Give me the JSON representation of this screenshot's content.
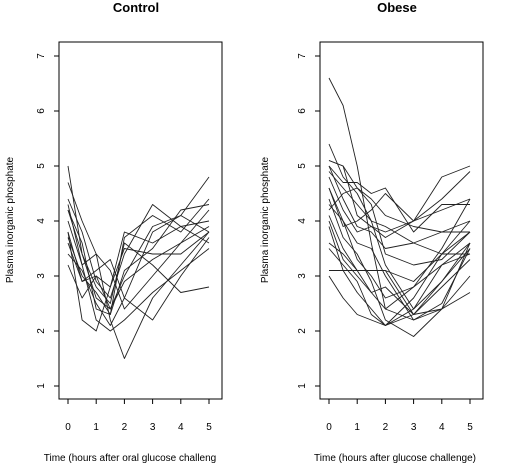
{
  "chart_data": [
    {
      "type": "line",
      "title": "Control",
      "xlabel": "Time (hours after oral glucose challeng",
      "ylabel": "Plasma inorganic phosphate",
      "xlim": [
        0,
        5
      ],
      "ylim": [
        0.8,
        7.4
      ],
      "x": [
        0,
        0.5,
        1,
        1.5,
        2,
        3,
        4,
        5
      ],
      "x_ticks": [
        0,
        1,
        2,
        3,
        4,
        5
      ],
      "y_ticks": [
        1,
        2,
        3,
        4,
        5,
        6,
        7
      ],
      "grid": false,
      "series": [
        {
          "values": [
            5.0,
            3.4,
            2.6,
            2.4,
            3.0,
            3.9,
            4.1,
            4.8
          ]
        },
        {
          "values": [
            4.7,
            4.0,
            3.4,
            2.2,
            1.5,
            2.6,
            3.2,
            3.8
          ]
        },
        {
          "values": [
            4.4,
            3.8,
            2.9,
            2.6,
            3.4,
            4.3,
            3.9,
            3.6
          ]
        },
        {
          "values": [
            4.3,
            3.2,
            2.2,
            2.0,
            2.2,
            2.7,
            3.1,
            3.5
          ]
        },
        {
          "values": [
            4.2,
            3.4,
            2.8,
            2.5,
            3.6,
            3.2,
            2.7,
            2.8
          ]
        },
        {
          "values": [
            4.0,
            3.2,
            3.4,
            3.1,
            2.4,
            3.0,
            3.6,
            4.2
          ]
        },
        {
          "values": [
            3.8,
            2.2,
            2.0,
            2.8,
            3.8,
            3.6,
            3.9,
            4.0
          ]
        },
        {
          "values": [
            3.8,
            2.9,
            3.0,
            2.4,
            2.9,
            3.3,
            3.6,
            3.9
          ]
        },
        {
          "values": [
            3.7,
            3.0,
            2.7,
            2.3,
            3.7,
            4.1,
            3.8,
            4.4
          ]
        },
        {
          "values": [
            3.6,
            2.9,
            3.1,
            3.3,
            2.6,
            2.2,
            3.0,
            3.7
          ]
        },
        {
          "values": [
            3.4,
            3.1,
            2.5,
            2.1,
            2.6,
            3.8,
            4.1,
            3.8
          ]
        },
        {
          "values": [
            3.2,
            2.6,
            3.0,
            2.8,
            3.5,
            3.4,
            3.4,
            3.8
          ]
        },
        {
          "values": [
            4.2,
            3.6,
            2.4,
            2.3,
            3.1,
            3.5,
            4.2,
            4.3
          ]
        }
      ]
    },
    {
      "type": "line",
      "title": "Obese",
      "xlabel": "Time (hours after glucose challenge)",
      "ylabel": "Plasma inorganic phosphate",
      "xlim": [
        0,
        5
      ],
      "ylim": [
        0.8,
        7.4
      ],
      "x": [
        0,
        0.5,
        1,
        1.5,
        2,
        3,
        4,
        5
      ],
      "x_ticks": [
        0,
        1,
        2,
        3,
        4,
        5
      ],
      "y_ticks": [
        1,
        2,
        3,
        4,
        5,
        6,
        7
      ],
      "grid": false,
      "series": [
        {
          "values": [
            6.6,
            6.1,
            5.0,
            3.6,
            2.4,
            2.2,
            2.5,
            3.5
          ]
        },
        {
          "values": [
            5.4,
            4.8,
            4.5,
            4.0,
            3.9,
            3.6,
            3.8,
            3.8
          ]
        },
        {
          "values": [
            5.1,
            5.0,
            4.1,
            3.9,
            3.8,
            4.0,
            4.8,
            5.0
          ]
        },
        {
          "values": [
            5.0,
            4.7,
            4.7,
            4.5,
            4.6,
            3.8,
            4.3,
            4.3
          ]
        },
        {
          "values": [
            5.0,
            4.4,
            3.9,
            3.8,
            3.5,
            3.6,
            3.4,
            3.4
          ]
        },
        {
          "values": [
            4.9,
            4.6,
            4.3,
            4.0,
            3.2,
            2.4,
            3.2,
            3.4
          ]
        },
        {
          "values": [
            4.8,
            4.2,
            3.8,
            3.9,
            3.7,
            4.0,
            4.2,
            4.4
          ]
        },
        {
          "values": [
            4.6,
            3.9,
            4.0,
            4.2,
            4.5,
            4.0,
            4.4,
            4.9
          ]
        },
        {
          "values": [
            4.4,
            3.7,
            3.4,
            2.9,
            2.2,
            1.9,
            2.4,
            2.7
          ]
        },
        {
          "values": [
            4.3,
            4.0,
            3.6,
            3.5,
            3.0,
            2.2,
            2.4,
            3.6
          ]
        },
        {
          "values": [
            4.1,
            3.5,
            3.1,
            3.1,
            3.1,
            2.9,
            3.4,
            3.8
          ]
        },
        {
          "values": [
            3.9,
            3.1,
            2.7,
            2.4,
            2.1,
            2.3,
            2.8,
            3.3
          ]
        },
        {
          "values": [
            3.6,
            3.4,
            3.1,
            2.7,
            2.4,
            2.8,
            3.2,
            3.6
          ]
        },
        {
          "values": [
            3.5,
            3.2,
            2.9,
            2.3,
            2.1,
            2.4,
            2.9,
            3.5
          ]
        },
        {
          "values": [
            3.1,
            3.1,
            3.1,
            3.1,
            3.1,
            2.3,
            2.9,
            3.6
          ]
        },
        {
          "values": [
            3.0,
            2.6,
            2.3,
            2.2,
            2.1,
            2.6,
            3.4,
            4.0
          ]
        },
        {
          "values": [
            4.2,
            4.5,
            4.6,
            4.4,
            4.1,
            3.9,
            3.8,
            4.0
          ]
        },
        {
          "values": [
            4.6,
            4.0,
            3.3,
            3.0,
            2.6,
            2.8,
            3.5,
            4.4
          ]
        },
        {
          "values": [
            4.0,
            3.3,
            3.0,
            2.7,
            2.8,
            2.3,
            2.4,
            3.0
          ]
        },
        {
          "values": [
            5.1,
            5.0,
            4.6,
            4.3,
            3.4,
            3.2,
            3.3,
            3.8
          ]
        }
      ]
    }
  ]
}
